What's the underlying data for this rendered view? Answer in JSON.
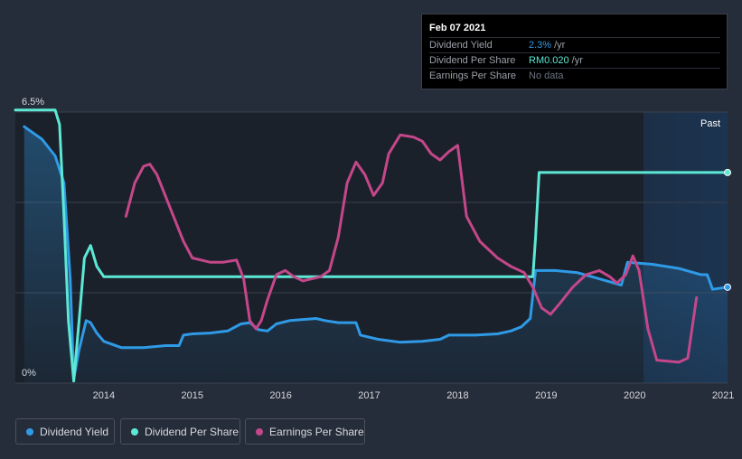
{
  "tooltip": {
    "date": "Feb 07 2021",
    "rows": [
      {
        "label": "Dividend Yield",
        "value": "2.3%",
        "unit": "/yr",
        "color": "#2f9ae6"
      },
      {
        "label": "Dividend Per Share",
        "value": "RM0.020",
        "unit": "/yr",
        "color": "#5ce8d4"
      },
      {
        "label": "Earnings Per Share",
        "value": "No data",
        "unit": "",
        "color": "#6b7280"
      }
    ]
  },
  "legend": [
    {
      "label": "Dividend Yield",
      "color": "#2f9ae6"
    },
    {
      "label": "Dividend Per Share",
      "color": "#5ce8d4"
    },
    {
      "label": "Earnings Per Share",
      "color": "#c4478a"
    }
  ],
  "chart_data": {
    "type": "line",
    "title": "",
    "xlabel": "",
    "ylabel": "",
    "y_tick_labels": [
      "6.5%",
      "0%"
    ],
    "ylim": [
      0,
      6.5
    ],
    "xlim": [
      2013.0,
      2021.05
    ],
    "x_tick_labels": [
      "2014",
      "2015",
      "2016",
      "2017",
      "2018",
      "2019",
      "2020",
      "2021"
    ],
    "x_ticks": [
      2014,
      2015,
      2016,
      2017,
      2018,
      2019,
      2020,
      2021
    ],
    "past_label": "Past",
    "past_start": 2020.1,
    "series": [
      {
        "name": "Dividend Yield",
        "color": "#2f9ae6",
        "area": true,
        "end_marker": true,
        "x": [
          2013.1,
          2013.3,
          2013.45,
          2013.55,
          2013.62,
          2013.66,
          2013.72,
          2013.8,
          2013.85,
          2013.92,
          2014.0,
          2014.2,
          2014.45,
          2014.7,
          2014.85,
          2014.9,
          2015.0,
          2015.2,
          2015.4,
          2015.55,
          2015.65,
          2015.75,
          2015.85,
          2015.95,
          2016.1,
          2016.4,
          2016.5,
          2016.65,
          2016.75,
          2016.85,
          2016.9,
          2017.1,
          2017.35,
          2017.6,
          2017.8,
          2017.9,
          2018.0,
          2018.2,
          2018.45,
          2018.6,
          2018.72,
          2018.82,
          2018.88,
          2019.1,
          2019.35,
          2019.6,
          2019.85,
          2019.92,
          2020.2,
          2020.5,
          2020.75,
          2020.82,
          2020.88,
          2021.05
        ],
        "y": [
          6.15,
          5.85,
          5.45,
          4.8,
          2.5,
          0.1,
          0.8,
          1.5,
          1.45,
          1.2,
          1.0,
          0.85,
          0.85,
          0.9,
          0.9,
          1.15,
          1.18,
          1.2,
          1.25,
          1.42,
          1.45,
          1.28,
          1.25,
          1.42,
          1.5,
          1.55,
          1.5,
          1.45,
          1.45,
          1.45,
          1.15,
          1.05,
          0.98,
          1.0,
          1.05,
          1.15,
          1.15,
          1.15,
          1.18,
          1.25,
          1.35,
          1.55,
          2.7,
          2.7,
          2.65,
          2.5,
          2.35,
          2.9,
          2.85,
          2.75,
          2.6,
          2.6,
          2.25,
          2.3
        ]
      },
      {
        "name": "Dividend Per Share",
        "color": "#5ce8d4",
        "area": false,
        "end_marker": true,
        "x": [
          2013.0,
          2013.45,
          2013.5,
          2013.55,
          2013.6,
          2013.66,
          2013.72,
          2013.78,
          2013.85,
          2013.92,
          2014.0,
          2018.85,
          2018.88,
          2018.92,
          2021.05
        ],
        "y": [
          6.55,
          6.55,
          6.2,
          4.0,
          1.5,
          0.05,
          1.5,
          3.0,
          3.3,
          2.8,
          2.55,
          2.55,
          3.5,
          5.05,
          5.05
        ]
      },
      {
        "name": "Earnings Per Share",
        "color": "#c4478a",
        "area": false,
        "end_marker": false,
        "x": [
          2014.25,
          2014.35,
          2014.45,
          2014.52,
          2014.6,
          2014.75,
          2014.9,
          2015.0,
          2015.2,
          2015.35,
          2015.5,
          2015.58,
          2015.65,
          2015.72,
          2015.78,
          2015.85,
          2015.95,
          2016.05,
          2016.15,
          2016.25,
          2016.35,
          2016.45,
          2016.55,
          2016.65,
          2016.75,
          2016.85,
          2016.95,
          2017.05,
          2017.15,
          2017.22,
          2017.35,
          2017.5,
          2017.6,
          2017.7,
          2017.8,
          2017.9,
          2018.0,
          2018.1,
          2018.25,
          2018.45,
          2018.6,
          2018.75,
          2018.85,
          2018.95,
          2019.05,
          2019.15,
          2019.3,
          2019.45,
          2019.6,
          2019.72,
          2019.8,
          2019.9,
          2019.98,
          2020.05,
          2020.15,
          2020.25,
          2020.5,
          2020.6,
          2020.7
        ],
        "y": [
          4.0,
          4.8,
          5.2,
          5.25,
          5.0,
          4.2,
          3.4,
          3.0,
          2.9,
          2.9,
          2.95,
          2.5,
          1.5,
          1.3,
          1.5,
          2.0,
          2.6,
          2.7,
          2.55,
          2.45,
          2.5,
          2.55,
          2.7,
          3.5,
          4.8,
          5.3,
          5.0,
          4.5,
          4.8,
          5.5,
          5.95,
          5.9,
          5.8,
          5.5,
          5.35,
          5.55,
          5.7,
          4.0,
          3.4,
          3.0,
          2.8,
          2.65,
          2.3,
          1.8,
          1.65,
          1.9,
          2.3,
          2.6,
          2.7,
          2.55,
          2.4,
          2.6,
          3.05,
          2.7,
          1.3,
          0.55,
          0.5,
          0.6,
          2.05
        ]
      }
    ]
  }
}
